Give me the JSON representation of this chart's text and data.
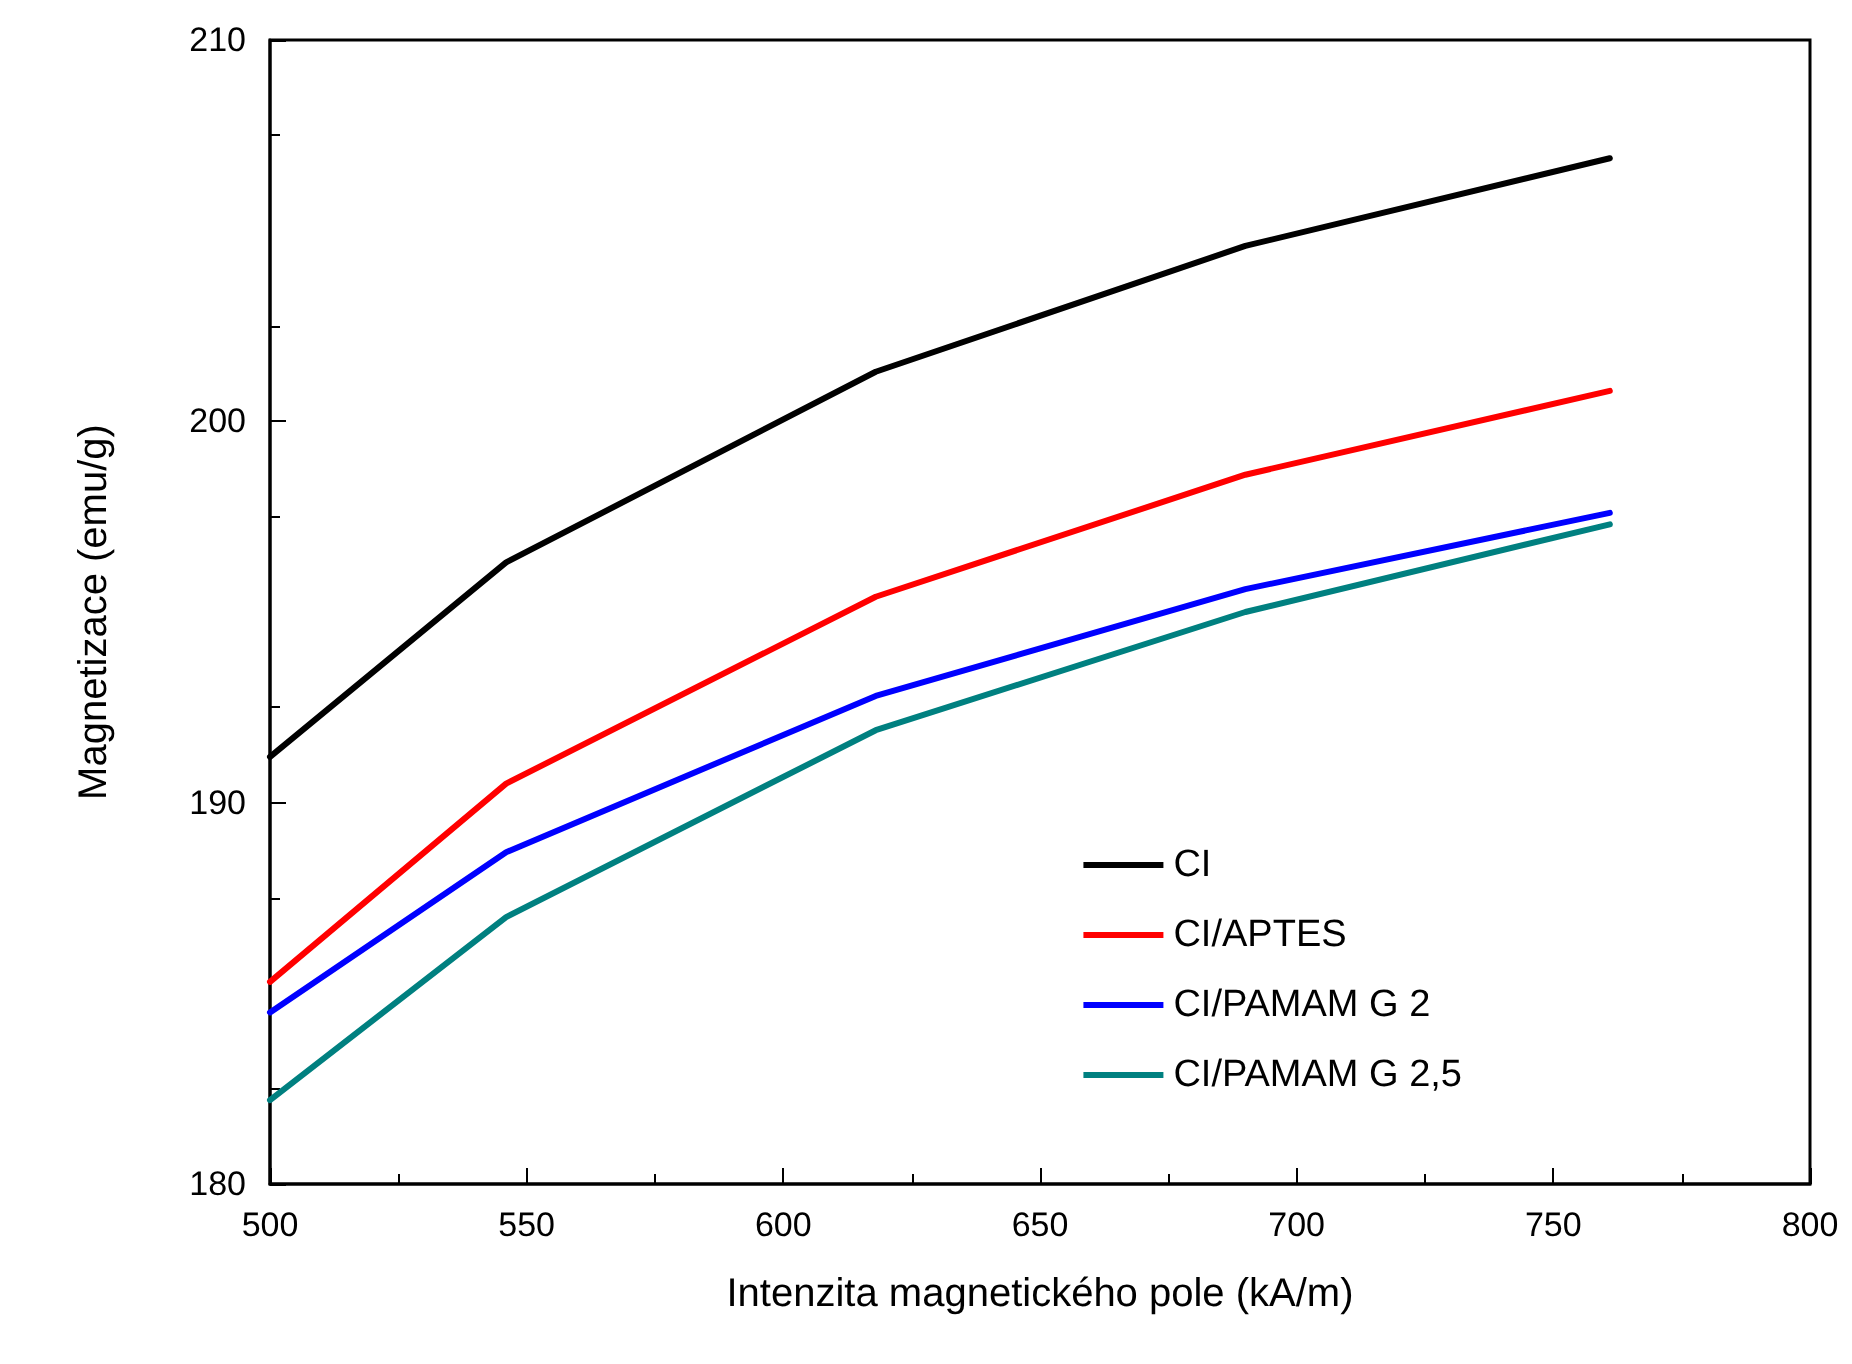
{
  "chart_data": {
    "type": "line",
    "xlabel": "Intenzita magnetického pole (kA/m)",
    "ylabel": "Magnetizace (emu/g)",
    "x": [
      500,
      546,
      618,
      690,
      761
    ],
    "series": [
      {
        "name": "CI",
        "color": "#000000",
        "values": [
          191.2,
          196.3,
          201.3,
          204.6,
          206.9
        ]
      },
      {
        "name": "CI/APTES",
        "color": "#ff0000",
        "values": [
          185.3,
          190.5,
          195.4,
          198.6,
          200.8
        ]
      },
      {
        "name": "CI/PAMAM G 2",
        "color": "#0000ff",
        "values": [
          184.5,
          188.7,
          192.8,
          195.6,
          197.6
        ]
      },
      {
        "name": "CI/PAMAM G 2,5",
        "color": "#008080",
        "values": [
          182.2,
          187.0,
          191.9,
          195.0,
          197.3
        ]
      }
    ],
    "xlim": [
      500,
      800
    ],
    "xticks": [
      500,
      550,
      600,
      650,
      700,
      750,
      800
    ],
    "ylim": [
      180,
      210
    ],
    "yticks": [
      180,
      190,
      200,
      210
    ],
    "grid": false,
    "legend": "bottom right",
    "marker": "none",
    "line_style": "solid"
  }
}
